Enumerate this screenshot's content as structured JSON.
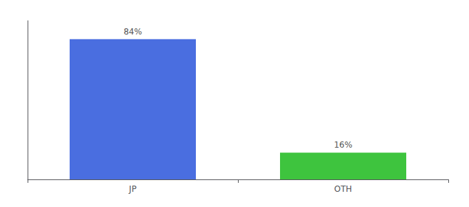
{
  "chart_data": {
    "type": "bar",
    "categories": [
      "JP",
      "OTH"
    ],
    "values": [
      84,
      16
    ],
    "colors": [
      "#4a6ee0",
      "#3ec43e"
    ],
    "value_labels": [
      "84%",
      "16%"
    ],
    "data_labels": true,
    "ylim": [
      0,
      95
    ],
    "yticks": [],
    "tick_labels": "x",
    "grid": false
  }
}
